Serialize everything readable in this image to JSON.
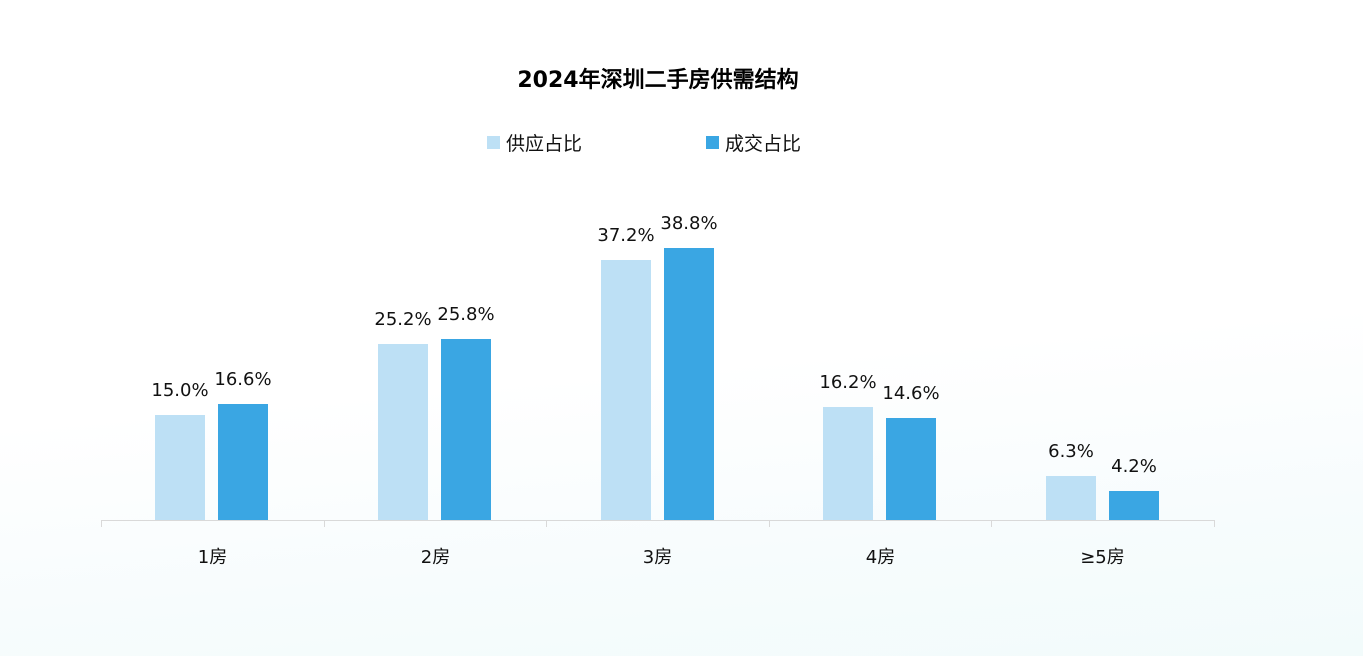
{
  "chart_data": {
    "type": "bar",
    "title": "2024年深圳二手房供需结构",
    "xlabel": "",
    "ylabel": "",
    "categories": [
      "1房",
      "2房",
      "3房",
      "4房",
      "≥5房"
    ],
    "series": [
      {
        "name": "供应占比",
        "color": "#bde0f5",
        "values": [
          15.0,
          25.2,
          37.2,
          16.2,
          6.3
        ],
        "labels": [
          "15.0%",
          "25.2%",
          "37.2%",
          "16.2%",
          "6.3%"
        ]
      },
      {
        "name": "成交占比",
        "color": "#3aa6e3",
        "values": [
          16.6,
          25.8,
          38.8,
          14.6,
          4.2
        ],
        "labels": [
          "16.6%",
          "25.8%",
          "38.8%",
          "14.6%",
          "4.2%"
        ]
      }
    ],
    "ylim": [
      0,
      40
    ],
    "grid": false,
    "legend_position": "top",
    "data_labels": true
  }
}
